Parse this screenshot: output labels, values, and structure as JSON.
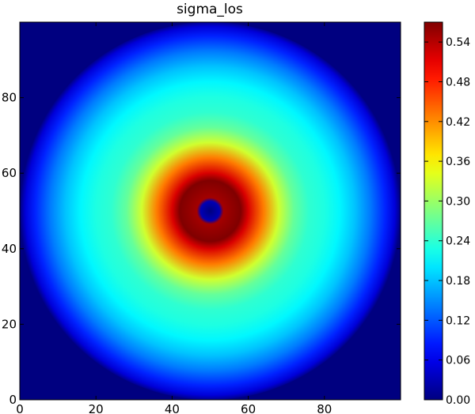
{
  "chart_data": {
    "type": "heatmap",
    "title": "sigma_los",
    "xlabel": "",
    "ylabel": "",
    "grid": false,
    "colormap": "jet",
    "xlim": [
      0,
      100
    ],
    "ylim": [
      100,
      0
    ],
    "x_ticks": [
      "0",
      "20",
      "40",
      "60",
      "80"
    ],
    "y_ticks": [
      "0",
      "20",
      "40",
      "60",
      "80"
    ],
    "colorbar": {
      "vmin": 0.0,
      "vmax": 0.57,
      "ticks": [
        "0.00",
        "0.06",
        "0.12",
        "0.18",
        "0.24",
        "0.30",
        "0.36",
        "0.42",
        "0.48",
        "0.54"
      ]
    },
    "field": {
      "center": [
        50,
        50
      ],
      "outside_radius_value": 0.0,
      "radial_profile": [
        {
          "r": 0,
          "value": 0.0
        },
        {
          "r": 2.5,
          "value": 0.03
        },
        {
          "r": 3.5,
          "value": 0.55
        },
        {
          "r": 8,
          "value": 0.57
        },
        {
          "r": 10,
          "value": 0.52
        },
        {
          "r": 14,
          "value": 0.43
        },
        {
          "r": 18,
          "value": 0.33
        },
        {
          "r": 22,
          "value": 0.27
        },
        {
          "r": 26,
          "value": 0.24
        },
        {
          "r": 30,
          "value": 0.23
        },
        {
          "r": 34,
          "value": 0.21
        },
        {
          "r": 38,
          "value": 0.18
        },
        {
          "r": 42,
          "value": 0.14
        },
        {
          "r": 46,
          "value": 0.09
        },
        {
          "r": 48.5,
          "value": 0.05
        },
        {
          "r": 50,
          "value": 0.0
        }
      ]
    }
  }
}
